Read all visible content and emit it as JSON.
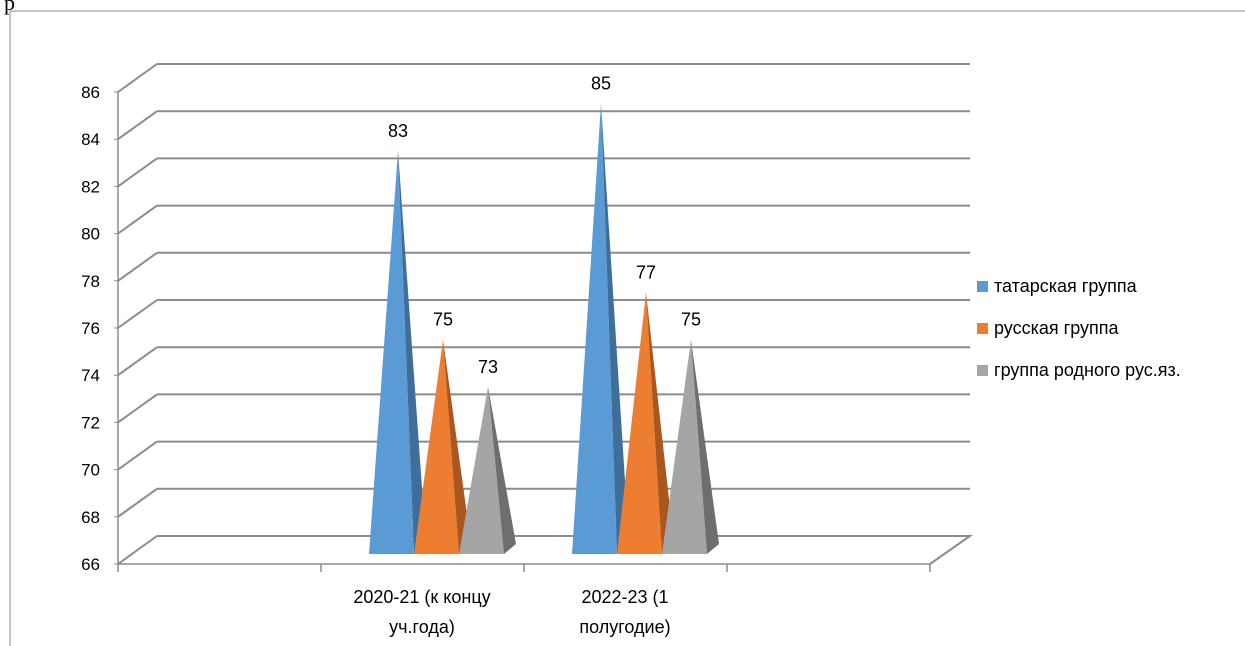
{
  "header_text": "р",
  "chart_data": {
    "type": "bar",
    "bar_shape": "pyramid-3d",
    "categories": [
      "2020-21 (к концу уч.года)",
      "2022-23 (1 полугодие)"
    ],
    "category_lines": [
      [
        "2020-21 (к концу",
        "уч.года)"
      ],
      [
        "2022-23 (1",
        "полугодие)"
      ]
    ],
    "series": [
      {
        "name": "татарская группа",
        "values": [
          83,
          85
        ],
        "color": "#5B9BD5",
        "shade": "#3F6E9B"
      },
      {
        "name": "русская группа",
        "values": [
          75,
          77
        ],
        "color": "#ED7D31",
        "shade": "#A9561F"
      },
      {
        "name": "группа родного рус.яз.",
        "values": [
          73,
          75
        ],
        "color": "#A5A5A5",
        "shade": "#6E6E6E"
      }
    ],
    "yticks": [
      "66",
      "68",
      "70",
      "72",
      "74",
      "76",
      "78",
      "80",
      "82",
      "84",
      "86"
    ],
    "ylim": [
      66,
      86
    ],
    "data_labels": [
      [
        "83",
        "85"
      ],
      [
        "75",
        "77"
      ],
      [
        "73",
        "75"
      ]
    ],
    "legend_position": "right",
    "grid": true
  }
}
